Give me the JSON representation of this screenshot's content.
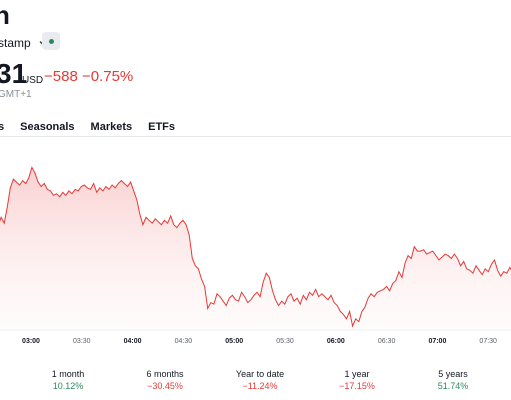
{
  "header": {
    "title_fragment": "n",
    "exchange_label": "stamp",
    "price": "31",
    "currency": "USD",
    "change": "−588 −0.75%",
    "timezone": "GMT+1"
  },
  "tabs": [
    "s",
    "Seasonals",
    "Markets",
    "ETFs"
  ],
  "colors": {
    "line": "#e53935",
    "positive": "#2d8a5b",
    "negative": "#e53935"
  },
  "chart_data": {
    "type": "area",
    "x_ticks": [
      {
        "label": "03:00",
        "bold": true
      },
      {
        "label": "03:30",
        "bold": false
      },
      {
        "label": "04:00",
        "bold": true
      },
      {
        "label": "04:30",
        "bold": false
      },
      {
        "label": "05:00",
        "bold": true
      },
      {
        "label": "05:30",
        "bold": false
      },
      {
        "label": "06:00",
        "bold": true
      },
      {
        "label": "06:30",
        "bold": false
      },
      {
        "label": "07:00",
        "bold": true
      },
      {
        "label": "07:30",
        "bold": false
      }
    ],
    "grid": false,
    "series_shape": [
      0.72,
      0.78,
      0.74,
      0.85,
      0.98,
      1.04,
      1.02,
      1.0,
      1.03,
      1.01,
      1.05,
      1.12,
      1.08,
      1.02,
      0.99,
      1.01,
      0.97,
      0.96,
      0.93,
      0.94,
      0.92,
      0.95,
      0.93,
      0.96,
      0.94,
      0.97,
      0.96,
      0.99,
      1.0,
      0.98,
      0.97,
      1.01,
      0.95,
      0.98,
      0.96,
      0.99,
      0.97,
      1.0,
      0.98,
      1.01,
      1.03,
      1.01,
      0.99,
      1.02,
      0.96,
      0.9,
      0.8,
      0.73,
      0.78,
      0.76,
      0.74,
      0.77,
      0.75,
      0.73,
      0.76,
      0.74,
      0.79,
      0.73,
      0.71,
      0.74,
      0.76,
      0.73,
      0.66,
      0.5,
      0.45,
      0.43,
      0.36,
      0.31,
      0.16,
      0.2,
      0.19,
      0.26,
      0.24,
      0.21,
      0.18,
      0.23,
      0.25,
      0.22,
      0.21,
      0.27,
      0.24,
      0.2,
      0.22,
      0.25,
      0.27,
      0.24,
      0.34,
      0.4,
      0.37,
      0.28,
      0.22,
      0.18,
      0.21,
      0.19,
      0.24,
      0.26,
      0.21,
      0.23,
      0.19,
      0.25,
      0.22,
      0.27,
      0.25,
      0.29,
      0.24,
      0.26,
      0.24,
      0.22,
      0.25,
      0.2,
      0.18,
      0.14,
      0.12,
      0.09,
      0.14,
      0.04,
      0.09,
      0.07,
      0.14,
      0.17,
      0.23,
      0.26,
      0.24,
      0.27,
      0.28,
      0.29,
      0.31,
      0.28,
      0.33,
      0.35,
      0.41,
      0.37,
      0.47,
      0.52,
      0.5,
      0.58,
      0.55,
      0.55,
      0.56,
      0.53,
      0.54,
      0.55,
      0.52,
      0.49,
      0.51,
      0.53,
      0.52,
      0.5,
      0.53,
      0.5,
      0.45,
      0.48,
      0.43,
      0.42,
      0.4,
      0.45,
      0.42,
      0.39,
      0.43,
      0.41,
      0.46,
      0.49,
      0.42,
      0.38,
      0.41,
      0.4,
      0.44,
      0.4
    ]
  },
  "performance": [
    {
      "label": "1 month",
      "value": "10.12%",
      "positive": true
    },
    {
      "label": "6 months",
      "value": "−30.45%",
      "positive": false
    },
    {
      "label": "Year to date",
      "value": "−11.24%",
      "positive": false
    },
    {
      "label": "1 year",
      "value": "−17.15%",
      "positive": false
    },
    {
      "label": "5 years",
      "value": "51.74%",
      "positive": true
    }
  ]
}
